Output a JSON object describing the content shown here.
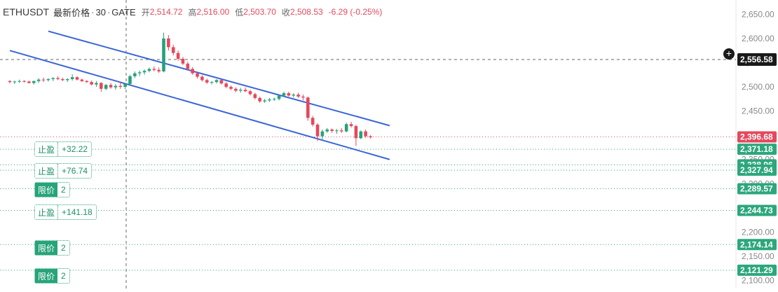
{
  "header": {
    "symbol": "ETHUSDT",
    "title": "最新价格",
    "interval": "30",
    "exchange": "GATE",
    "open_label": "开",
    "open": "2,514.72",
    "high_label": "高",
    "high": "2,516.00",
    "low_label": "低",
    "low": "2,503.70",
    "close_label": "收",
    "close": "2,508.53",
    "change": "-6.29 (-0.25%)"
  },
  "colors": {
    "up": "#26a17b",
    "down": "#e5485d",
    "channel": "#3a66d6",
    "order_line": "#2ca77c",
    "last_price": "#e5485d",
    "crosshair_label": "#1a1a1a"
  },
  "order_tags": [
    {
      "key": "止盈",
      "value": "+32.22",
      "kind": "tp"
    },
    {
      "key": "止盈",
      "value": "+76.74",
      "kind": "tp"
    },
    {
      "key": "限价",
      "value": "2",
      "kind": "limit"
    },
    {
      "key": "止盈",
      "value": "+141.18",
      "kind": "tp"
    },
    {
      "key": "限价",
      "value": "2",
      "kind": "limit"
    },
    {
      "key": "限价",
      "value": "2",
      "kind": "limit"
    }
  ],
  "crosshair_icon": "plus-circle-icon",
  "chart_data": {
    "type": "candlestick",
    "y_axis_side": "right",
    "ylim": [
      2095,
      2665
    ],
    "y_ticks": [
      2650,
      2600,
      2550,
      2500,
      2450,
      2400,
      2350,
      2300,
      2250,
      2200,
      2150,
      2100
    ],
    "y_tick_labels": [
      "2,650.00",
      "2,600.00",
      "2,550.00",
      "2,500.00",
      "2,450.00",
      "2,400.00",
      "2,350.00",
      "2,300.00",
      "2,250.00",
      "2,200.00",
      "2,150.00",
      "2,100.00"
    ],
    "crosshair_price": 2556.58,
    "crosshair_label": "2,556.58",
    "last_price": 2396.68,
    "last_price_label": "2,396.68",
    "order_levels": [
      {
        "price": 2371.18,
        "label": "2,371.18"
      },
      {
        "price": 2338.96,
        "label": "2,338.96"
      },
      {
        "price": 2327.94,
        "label": "2,327.94"
      },
      {
        "price": 2289.57,
        "label": "2,289.57"
      },
      {
        "price": 2244.73,
        "label": "2,244.73"
      },
      {
        "price": 2174.14,
        "label": "2,174.14"
      },
      {
        "price": 2121.29,
        "label": "2,121.29"
      }
    ],
    "channel_lines": [
      {
        "start": [
          8,
          2615
        ],
        "end": [
          79,
          2420
        ]
      },
      {
        "start": [
          0,
          2575
        ],
        "end": [
          79,
          2350
        ]
      }
    ],
    "candles": [
      [
        2512,
        2514,
        2507,
        2510
      ],
      [
        2510,
        2513,
        2506,
        2511
      ],
      [
        2511,
        2515,
        2508,
        2512
      ],
      [
        2512,
        2514,
        2509,
        2511
      ],
      [
        2511,
        2513,
        2507,
        2508
      ],
      [
        2508,
        2513,
        2505,
        2512
      ],
      [
        2512,
        2518,
        2508,
        2515
      ],
      [
        2515,
        2519,
        2510,
        2514
      ],
      [
        2514,
        2518,
        2511,
        2516
      ],
      [
        2516,
        2520,
        2512,
        2518
      ],
      [
        2518,
        2522,
        2514,
        2516
      ],
      [
        2516,
        2519,
        2512,
        2514
      ],
      [
        2514,
        2518,
        2510,
        2516
      ],
      [
        2516,
        2526,
        2513,
        2520
      ],
      [
        2520,
        2522,
        2513,
        2515
      ],
      [
        2515,
        2517,
        2510,
        2512
      ],
      [
        2512,
        2514,
        2508,
        2510
      ],
      [
        2510,
        2513,
        2503,
        2505
      ],
      [
        2505,
        2512,
        2500,
        2508
      ],
      [
        2508,
        2510,
        2490,
        2496
      ],
      [
        2496,
        2506,
        2493,
        2504
      ],
      [
        2504,
        2508,
        2496,
        2499
      ],
      [
        2499,
        2506,
        2494,
        2502
      ],
      [
        2502,
        2509,
        2496,
        2500
      ],
      [
        2500,
        2508,
        2495,
        2506
      ],
      [
        2506,
        2525,
        2504,
        2522
      ],
      [
        2522,
        2532,
        2518,
        2528
      ],
      [
        2528,
        2534,
        2522,
        2530
      ],
      [
        2530,
        2536,
        2525,
        2533
      ],
      [
        2533,
        2540,
        2530,
        2537
      ],
      [
        2537,
        2542,
        2532,
        2535
      ],
      [
        2535,
        2540,
        2529,
        2532
      ],
      [
        2532,
        2612,
        2530,
        2600
      ],
      [
        2600,
        2607,
        2575,
        2582
      ],
      [
        2582,
        2587,
        2565,
        2570
      ],
      [
        2570,
        2575,
        2554,
        2558
      ],
      [
        2558,
        2562,
        2545,
        2548
      ],
      [
        2548,
        2552,
        2534,
        2537
      ],
      [
        2537,
        2541,
        2525,
        2528
      ],
      [
        2528,
        2531,
        2517,
        2521
      ],
      [
        2521,
        2524,
        2511,
        2514
      ],
      [
        2514,
        2517,
        2506,
        2509
      ],
      [
        2509,
        2512,
        2505,
        2510
      ],
      [
        2510,
        2516,
        2507,
        2514
      ],
      [
        2514,
        2516,
        2505,
        2507
      ],
      [
        2507,
        2510,
        2497,
        2500
      ],
      [
        2500,
        2503,
        2493,
        2496
      ],
      [
        2496,
        2499,
        2489,
        2492
      ],
      [
        2492,
        2498,
        2488,
        2494
      ],
      [
        2494,
        2499,
        2489,
        2491
      ],
      [
        2491,
        2494,
        2482,
        2485
      ],
      [
        2485,
        2488,
        2474,
        2477
      ],
      [
        2477,
        2480,
        2467,
        2470
      ],
      [
        2470,
        2475,
        2467,
        2472
      ],
      [
        2472,
        2477,
        2469,
        2474
      ],
      [
        2474,
        2478,
        2471,
        2475
      ],
      [
        2475,
        2484,
        2472,
        2482
      ],
      [
        2482,
        2490,
        2479,
        2487
      ],
      [
        2487,
        2490,
        2480,
        2482
      ],
      [
        2482,
        2487,
        2478,
        2484
      ],
      [
        2484,
        2488,
        2477,
        2480
      ],
      [
        2480,
        2484,
        2472,
        2478
      ],
      [
        2478,
        2480,
        2430,
        2436
      ],
      [
        2436,
        2440,
        2418,
        2422
      ],
      [
        2422,
        2425,
        2388,
        2398
      ],
      [
        2398,
        2412,
        2392,
        2408
      ],
      [
        2408,
        2415,
        2405,
        2412
      ],
      [
        2412,
        2414,
        2405,
        2409
      ],
      [
        2409,
        2413,
        2403,
        2410
      ],
      [
        2410,
        2415,
        2405,
        2408
      ],
      [
        2408,
        2426,
        2406,
        2423
      ],
      [
        2423,
        2428,
        2416,
        2419
      ],
      [
        2419,
        2422,
        2378,
        2394
      ],
      [
        2394,
        2410,
        2392,
        2408
      ],
      [
        2408,
        2412,
        2395,
        2398
      ],
      [
        2398,
        2400,
        2393,
        2396
      ]
    ]
  }
}
